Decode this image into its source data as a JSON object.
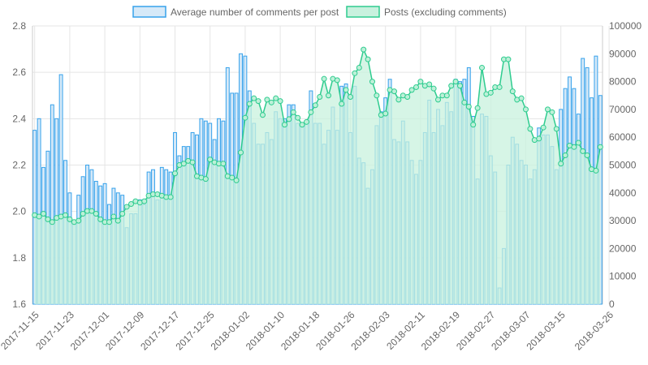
{
  "chart_data": {
    "type": "bar",
    "legend": {
      "position": "top"
    },
    "colors": {
      "bar_fill": "#d6e9f8",
      "bar_stroke": "#36a2eb",
      "line": "#2ecc8f",
      "area": "#c8f1de",
      "point_fill": "#bdf0d8"
    },
    "start_date": "2017-11-15",
    "end_date": "2018-03-26",
    "x_tick_labels": [
      "2017-11-15",
      "2017-11-23",
      "2017-12-01",
      "2017-12-09",
      "2017-12-17",
      "2017-12-25",
      "2018-01-02",
      "2018-01-10",
      "2018-01-18",
      "2018-01-26",
      "2018-02-03",
      "2018-02-11",
      "2018-02-19",
      "2018-02-27",
      "2018-03-07",
      "2018-03-15",
      "2018-03-26"
    ],
    "y_left": {
      "min": 1.6,
      "max": 2.8,
      "ticks": [
        "1.6",
        "1.8",
        "2.0",
        "2.2",
        "2.4",
        "2.6",
        "2.8"
      ]
    },
    "y_right": {
      "min": 0,
      "max": 100000,
      "ticks": [
        "0",
        "10000",
        "20000",
        "30000",
        "40000",
        "50000",
        "60000",
        "70000",
        "80000",
        "90000",
        "100000"
      ]
    },
    "series": [
      {
        "name": "Average number of comments per post",
        "type": "bar",
        "axis": "left",
        "values": [
          2.35,
          2.4,
          2.19,
          2.26,
          2.46,
          2.4,
          2.59,
          2.22,
          2.08,
          1.96,
          2.07,
          2.15,
          2.2,
          2.18,
          2.13,
          2.11,
          2.12,
          2.03,
          2.1,
          2.08,
          2.07,
          1.93,
          1.99,
          1.99,
          2.05,
          2.03,
          2.17,
          2.18,
          2.05,
          2.19,
          2.18,
          2.17,
          2.34,
          2.24,
          2.28,
          2.28,
          2.34,
          2.33,
          2.4,
          2.39,
          2.38,
          2.31,
          2.4,
          2.39,
          2.62,
          2.51,
          2.51,
          2.68,
          2.67,
          2.52,
          2.38,
          2.29,
          2.29,
          2.34,
          2.31,
          2.43,
          2.4,
          2.4,
          2.46,
          2.46,
          2.38,
          2.38,
          2.38,
          2.52,
          2.38,
          2.38,
          2.29,
          2.35,
          2.45,
          2.35,
          2.54,
          2.55,
          2.34,
          2.54,
          2.23,
          2.21,
          2.1,
          2.18,
          2.37,
          2.43,
          2.49,
          2.57,
          2.31,
          2.3,
          2.39,
          2.3,
          2.22,
          2.16,
          2.22,
          2.34,
          2.48,
          2.34,
          2.44,
          2.37,
          2.47,
          2.43,
          2.57,
          2.56,
          2.57,
          2.62,
          2.41,
          2.14,
          2.42,
          2.41,
          2.24,
          2.17,
          1.67,
          1.84,
          2.2,
          2.32,
          2.29,
          2.22,
          2.2,
          2.14,
          2.18,
          2.36,
          2.33,
          2.33,
          2.28,
          2.18,
          2.44,
          2.53,
          2.58,
          2.53,
          2.42,
          2.66,
          2.62,
          2.49,
          2.67,
          2.5
        ]
      },
      {
        "name": "Posts (excluding comments)",
        "type": "area",
        "axis": "right",
        "values": [
          32000,
          31500,
          32500,
          30500,
          29500,
          31000,
          31500,
          32000,
          30500,
          29500,
          30000,
          32500,
          33500,
          33500,
          32500,
          30500,
          29500,
          29500,
          31500,
          30000,
          32500,
          35000,
          36000,
          37000,
          36500,
          37000,
          39000,
          39500,
          39500,
          39000,
          38500,
          38500,
          47000,
          50000,
          50500,
          51500,
          51000,
          46000,
          45500,
          45000,
          52000,
          51000,
          50500,
          50500,
          46000,
          45500,
          44500,
          54500,
          67000,
          72000,
          74000,
          73000,
          68000,
          73500,
          72500,
          74000,
          73000,
          64500,
          66500,
          69000,
          67000,
          64500,
          65500,
          69000,
          71500,
          74500,
          81000,
          75000,
          81000,
          80500,
          72000,
          77000,
          74500,
          83000,
          85000,
          91500,
          88000,
          80000,
          75000,
          68000,
          68500,
          77000,
          76500,
          73500,
          75000,
          74500,
          77000,
          78000,
          80000,
          78500,
          79000,
          77500,
          73500,
          75000,
          75000,
          78500,
          80000,
          78500,
          72500,
          71000,
          64500,
          70500,
          85000,
          75500,
          76000,
          78000,
          78000,
          88000,
          88000,
          76500,
          73500,
          74000,
          70000,
          63000,
          59000,
          59500,
          63500,
          70000,
          69000,
          63000,
          50500,
          53500,
          57000,
          56500,
          58000,
          55000,
          53500,
          48500,
          48000,
          56500
        ]
      }
    ]
  }
}
